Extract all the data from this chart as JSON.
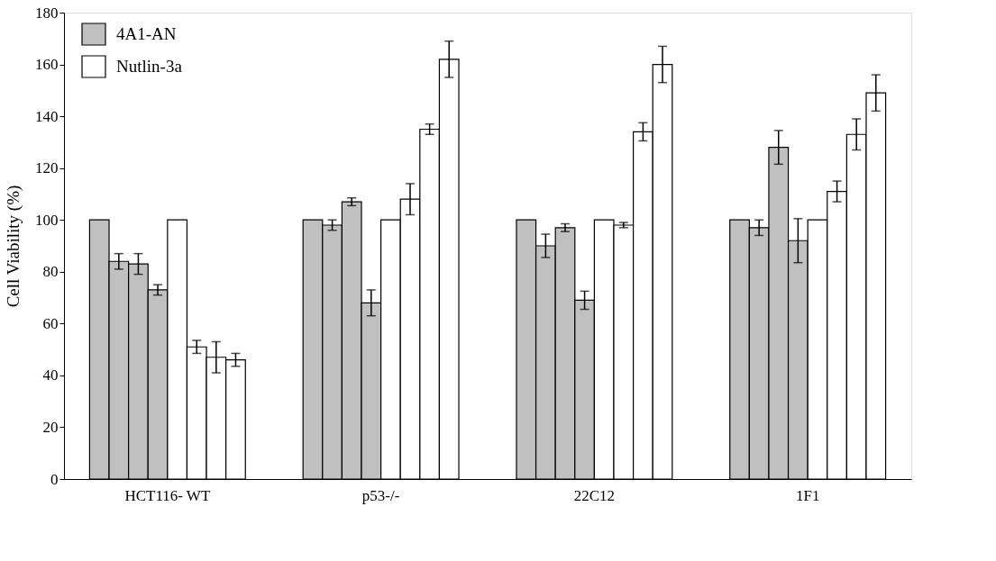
{
  "chart_data": {
    "type": "bar",
    "ylabel": "Cell Viability (%)",
    "categories": [
      "HCT116- WT",
      "p53-/-",
      "22C12",
      "1F1"
    ],
    "series": [
      {
        "name": "4A1-AN",
        "color": "#c0c0c0",
        "values": [
          100,
          100,
          100,
          100
        ],
        "errors": [
          null,
          null,
          null,
          null
        ]
      },
      {
        "color": "#c0c0c0",
        "values": [
          84,
          98,
          90,
          97
        ],
        "errors": [
          3,
          2,
          4.5,
          3
        ]
      },
      {
        "color": "#c0c0c0",
        "values": [
          83,
          107,
          97,
          128
        ],
        "errors": [
          4,
          1.5,
          1.5,
          6.5
        ]
      },
      {
        "color": "#c0c0c0",
        "values": [
          73,
          68,
          69,
          92
        ],
        "errors": [
          2,
          5,
          3.5,
          8.5
        ]
      },
      {
        "name": "Nutlin-3a",
        "color": "#ffffff",
        "values": [
          100,
          100,
          100,
          100
        ],
        "errors": [
          null,
          null,
          null,
          null
        ]
      },
      {
        "color": "#ffffff",
        "values": [
          51,
          108,
          98,
          111
        ],
        "errors": [
          2.5,
          6,
          1,
          4
        ]
      },
      {
        "color": "#ffffff",
        "values": [
          47,
          135,
          134,
          133
        ],
        "errors": [
          6,
          2,
          3.5,
          6
        ]
      },
      {
        "color": "#ffffff",
        "values": [
          46,
          162,
          160,
          149
        ],
        "errors": [
          2.5,
          7,
          7,
          7
        ]
      }
    ],
    "ylim": [
      0,
      180
    ],
    "yticks": [
      0,
      20,
      40,
      60,
      80,
      100,
      120,
      140,
      160,
      180
    ],
    "grid": false,
    "legend": "top left"
  }
}
